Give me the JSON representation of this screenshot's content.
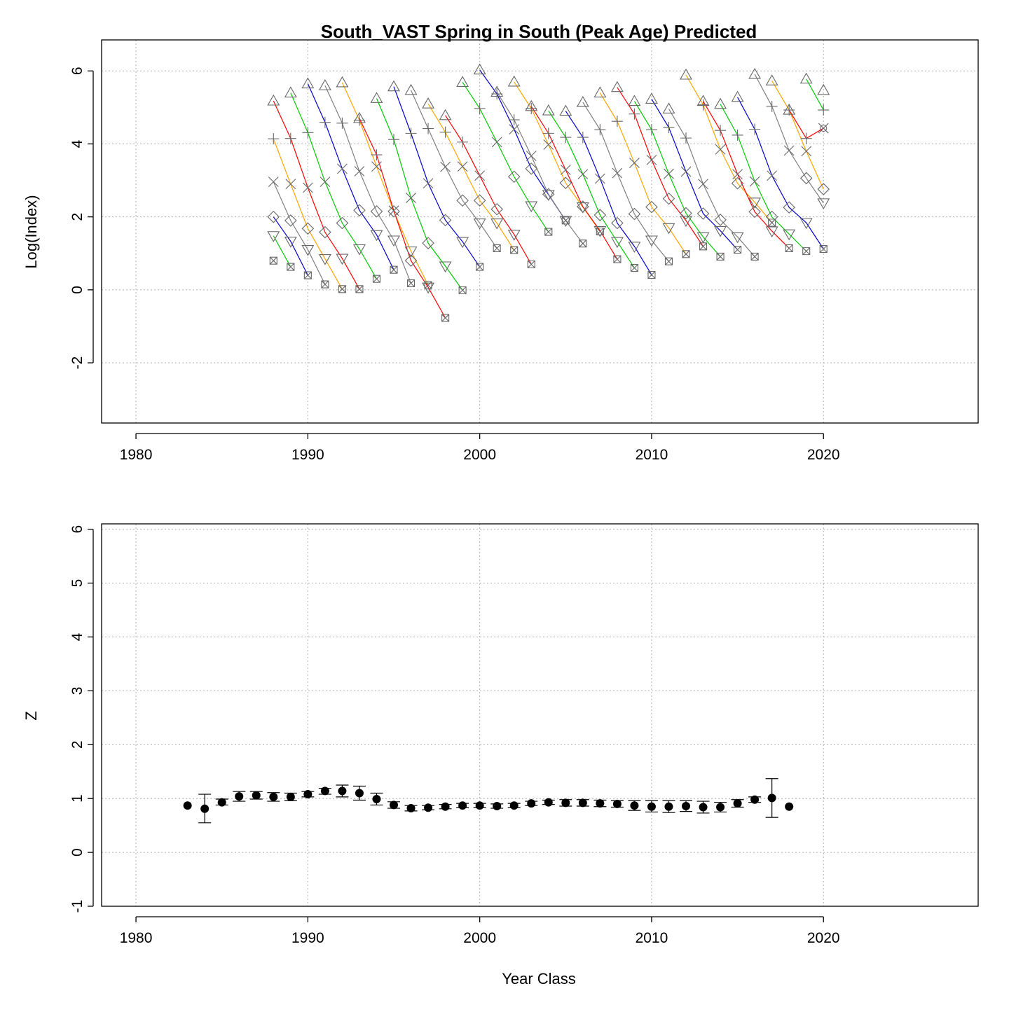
{
  "chart_data": [
    {
      "type": "line",
      "title": "South_VAST Spring in South (Peak Age) Predicted",
      "xlabel": "",
      "ylabel": "Log(Index)",
      "xlim": [
        1978,
        2029
      ],
      "ylim": [
        -3.65,
        6.85
      ],
      "xticks": [
        "1980",
        "1990",
        "2000",
        "2010",
        "2020"
      ],
      "yticks": [
        "-2",
        "0",
        "2",
        "4",
        "6"
      ],
      "xtick_values": [
        1980,
        1990,
        2000,
        2010,
        2020
      ],
      "ytick_values": [
        -2,
        0,
        2,
        4,
        6
      ],
      "grid": true,
      "palette": [
        "#ff0000",
        "#00cc00",
        "#0000cc",
        "#808080",
        "#ffa500"
      ],
      "marker_symbols": [
        "triangle",
        "plus",
        "x",
        "diamond",
        "triangle-down",
        "boxed-x",
        "circle"
      ],
      "survey_years": [
        1988,
        1989,
        1990,
        1991,
        1992,
        1993,
        1994,
        1995,
        1996,
        1997,
        1998,
        1999,
        2000,
        2001,
        2002,
        2003,
        2004,
        2005,
        2006,
        2007,
        2008,
        2009,
        2010,
        2011,
        2012,
        2013,
        2014,
        2015,
        2016,
        2017,
        2018,
        2019,
        2020
      ],
      "series_by_year": [
        {
          "year": 1988,
          "values": [
            5.18,
            4.14,
            2.96,
            2.0,
            1.48,
            0.8
          ]
        },
        {
          "year": 1989,
          "values": [
            5.4,
            4.15,
            2.9,
            1.9,
            1.33,
            0.63
          ]
        },
        {
          "year": 1990,
          "values": [
            5.65,
            4.31,
            2.8,
            1.68,
            1.1,
            0.4
          ]
        },
        {
          "year": 1991,
          "values": [
            5.6,
            4.59,
            2.96,
            1.58,
            0.85,
            0.15
          ]
        },
        {
          "year": 1992,
          "values": [
            5.68,
            4.57,
            3.32,
            1.83,
            0.86,
            0.02
          ]
        },
        {
          "year": 1993,
          "values": [
            4.7,
            4.65,
            3.25,
            2.18,
            1.12,
            0.02
          ]
        },
        {
          "year": 1994,
          "values": [
            5.25,
            3.7,
            3.38,
            2.15,
            1.51,
            0.3
          ]
        },
        {
          "year": 1995,
          "values": [
            5.57,
            4.12,
            2.17,
            2.15,
            1.36,
            0.55
          ]
        },
        {
          "year": 1996,
          "values": [
            5.47,
            4.29,
            2.52,
            0.8,
            1.06,
            0.18
          ]
        },
        {
          "year": 1997,
          "values": [
            5.1,
            4.42,
            2.92,
            1.28,
            0.07,
            0.13
          ]
        },
        {
          "year": 1998,
          "values": [
            4.78,
            4.32,
            3.37,
            1.91,
            0.65,
            -0.77
          ]
        },
        {
          "year": 1999,
          "values": [
            5.69,
            4.05,
            3.38,
            2.45,
            1.32,
            -0.01
          ]
        },
        {
          "year": 2000,
          "values": [
            6.03,
            4.97,
            3.13,
            2.45,
            1.83,
            0.63
          ]
        },
        {
          "year": 2001,
          "values": [
            5.42,
            5.37,
            4.05,
            2.21,
            1.83,
            1.14
          ]
        },
        {
          "year": 2002,
          "values": [
            5.7,
            4.66,
            4.4,
            3.1,
            1.52,
            1.09
          ]
        },
        {
          "year": 2003,
          "values": [
            5.03,
            4.97,
            3.67,
            3.32,
            2.3,
            0.7
          ]
        },
        {
          "year": 2004,
          "values": [
            4.91,
            4.29,
            3.98,
            2.62,
            2.61,
            1.59
          ]
        },
        {
          "year": 2005,
          "values": [
            4.9,
            4.18,
            3.29,
            2.93,
            1.9,
            1.9
          ]
        },
        {
          "year": 2006,
          "values": [
            5.14,
            4.18,
            3.17,
            2.28,
            2.27,
            1.27
          ]
        },
        {
          "year": 2007,
          "values": [
            5.4,
            4.39,
            3.05,
            2.05,
            1.62,
            1.6
          ]
        },
        {
          "year": 2008,
          "values": [
            5.55,
            4.62,
            3.2,
            1.83,
            1.32,
            0.84
          ]
        },
        {
          "year": 2009,
          "values": [
            5.17,
            4.82,
            3.48,
            2.08,
            1.19,
            0.6
          ]
        },
        {
          "year": 2010,
          "values": [
            5.23,
            4.39,
            3.56,
            2.27,
            1.36,
            0.41
          ]
        },
        {
          "year": 2011,
          "values": [
            4.96,
            4.45,
            3.18,
            2.5,
            1.7,
            0.78
          ]
        },
        {
          "year": 2012,
          "values": [
            5.89,
            4.16,
            3.24,
            2.1,
            1.9,
            0.98
          ]
        },
        {
          "year": 2013,
          "values": [
            5.17,
            5.07,
            2.9,
            2.09,
            1.45,
            1.19
          ]
        },
        {
          "year": 2014,
          "values": [
            5.09,
            4.37,
            3.85,
            1.92,
            1.62,
            0.91
          ]
        },
        {
          "year": 2015,
          "values": [
            5.28,
            4.24,
            3.17,
            2.92,
            1.45,
            1.1
          ]
        },
        {
          "year": 2016,
          "values": [
            5.91,
            4.4,
            2.97,
            2.14,
            2.4,
            0.91
          ]
        },
        {
          "year": 2017,
          "values": [
            5.73,
            5.03,
            3.13,
            2.0,
            1.61,
            1.84
          ]
        },
        {
          "year": 2018,
          "values": [
            4.93,
            4.93,
            3.82,
            2.26,
            1.53,
            1.14
          ]
        },
        {
          "year": 2019,
          "values": [
            5.78,
            4.15,
            3.8,
            3.06,
            1.84,
            1.06
          ]
        },
        {
          "year": 2020,
          "values": [
            5.47,
            4.93,
            4.43,
            2.76,
            2.38,
            1.12
          ]
        }
      ]
    },
    {
      "type": "scatter",
      "title": "",
      "xlabel": "Year Class",
      "ylabel": "Z",
      "xlim": [
        1978,
        2029
      ],
      "ylim": [
        -1,
        6.1
      ],
      "xticks": [
        "1980",
        "1990",
        "2000",
        "2010",
        "2020"
      ],
      "yticks": [
        "-1",
        "0",
        "1",
        "2",
        "3",
        "4",
        "5",
        "6"
      ],
      "xtick_values": [
        1980,
        1990,
        2000,
        2010,
        2020
      ],
      "ytick_values": [
        -1,
        0,
        1,
        2,
        3,
        4,
        5,
        6
      ],
      "grid": true,
      "x": [
        1983,
        1984,
        1985,
        1986,
        1987,
        1988,
        1989,
        1990,
        1991,
        1992,
        1993,
        1994,
        1995,
        1996,
        1997,
        1998,
        1999,
        2000,
        2001,
        2002,
        2003,
        2004,
        2005,
        2006,
        2007,
        2008,
        2009,
        2010,
        2011,
        2012,
        2013,
        2014,
        2015,
        2016,
        2017,
        2018
      ],
      "y": [
        0.87,
        0.81,
        0.93,
        1.04,
        1.06,
        1.03,
        1.03,
        1.08,
        1.14,
        1.14,
        1.1,
        0.99,
        0.88,
        0.82,
        0.83,
        0.85,
        0.87,
        0.87,
        0.86,
        0.87,
        0.91,
        0.93,
        0.92,
        0.92,
        0.91,
        0.9,
        0.87,
        0.85,
        0.85,
        0.86,
        0.84,
        0.84,
        0.91,
        0.98,
        1.01,
        0.85
      ],
      "err_low": [
        null,
        0.55,
        0.88,
        0.95,
        0.99,
        0.95,
        0.96,
        1.03,
        1.08,
        1.03,
        0.97,
        0.88,
        0.82,
        0.77,
        0.79,
        0.81,
        0.83,
        0.83,
        0.82,
        0.83,
        0.87,
        0.89,
        0.86,
        0.86,
        0.85,
        0.84,
        0.78,
        0.75,
        0.74,
        0.76,
        0.73,
        0.75,
        0.84,
        0.93,
        0.65,
        null
      ],
      "err_high": [
        null,
        1.08,
        0.99,
        1.13,
        1.13,
        1.11,
        1.1,
        1.13,
        1.19,
        1.25,
        1.23,
        1.1,
        0.94,
        0.87,
        0.87,
        0.89,
        0.91,
        0.91,
        0.9,
        0.91,
        0.95,
        0.97,
        0.98,
        0.98,
        0.97,
        0.96,
        0.96,
        0.96,
        0.96,
        0.96,
        0.95,
        0.93,
        0.98,
        1.03,
        1.37,
        null
      ]
    }
  ]
}
